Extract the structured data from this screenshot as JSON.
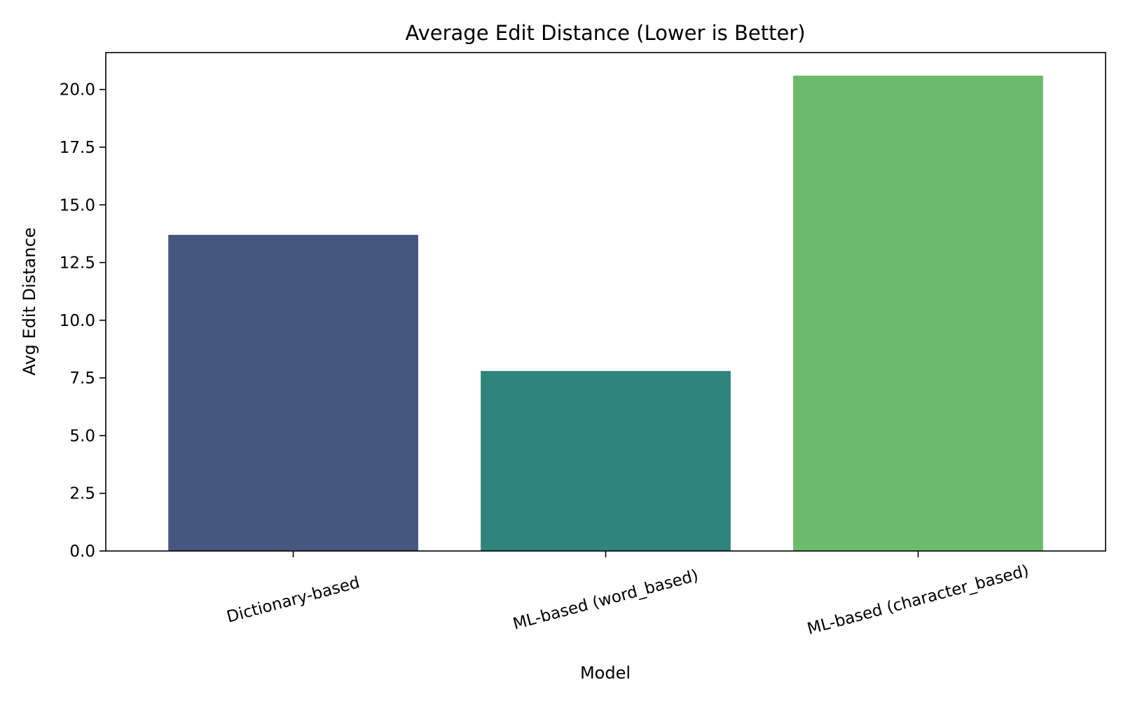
{
  "chart_data": {
    "type": "bar",
    "title": "Average Edit Distance (Lower is Better)",
    "xlabel": "Model",
    "ylabel": "Avg Edit Distance",
    "categories": [
      "Dictionary-based",
      "ML-based (word_based)",
      "ML-based (character_based)"
    ],
    "values": [
      13.7,
      7.8,
      20.6
    ],
    "colors": [
      "#46577f",
      "#2f847c",
      "#6cbb6c"
    ],
    "ylim": [
      0,
      21.6
    ],
    "yticks": [
      "0.0",
      "2.5",
      "5.0",
      "7.5",
      "10.0",
      "12.5",
      "15.0",
      "17.5",
      "20.0"
    ],
    "grid": false,
    "legend": "none"
  }
}
